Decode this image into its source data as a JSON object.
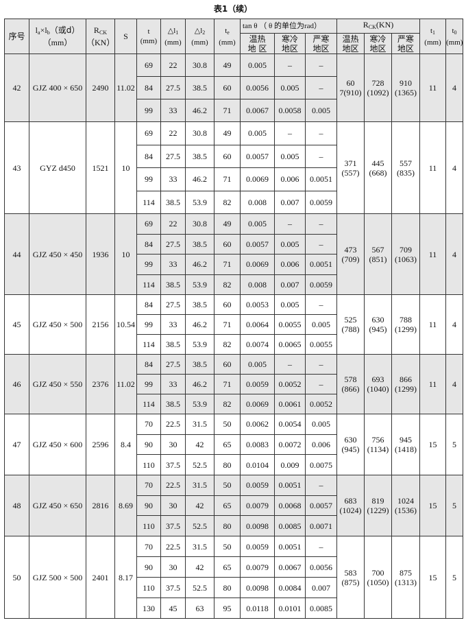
{
  "caption": "表1（续）",
  "header": {
    "no": "序号",
    "size": {
      "l": "l",
      "a": "a",
      "times": "×",
      "l2": "l",
      "b": "b",
      "or": "（或d）",
      "unit": "（mm）"
    },
    "rck": {
      "base": "R",
      "sub": "CK",
      "unit": "（KN）"
    },
    "s": "S",
    "t": {
      "label": "t",
      "unit": "(mm)"
    },
    "dl1": {
      "base": "△l",
      "sub": "1",
      "unit": "(mm)"
    },
    "dl2": {
      "base": "△l",
      "sub": "2",
      "unit": "(mm)"
    },
    "te": {
      "base": "t",
      "sub": "e",
      "unit": "(mm)"
    },
    "tan": "tan θ （ θ 的单位为rad）",
    "tan_sub": [
      "温热\n地 区",
      "寒冷\n地区",
      "严寒\n地区"
    ],
    "rck2": {
      "base": "R",
      "sub": "CK",
      "rest": "(KN)"
    },
    "rck2_sub": [
      "温热\n地区",
      "寒冷\n地区",
      "严寒\n地区"
    ],
    "t1": {
      "base": "t",
      "sub": "1",
      "unit": "(mm)"
    },
    "t0": {
      "base": "t",
      "sub": "0",
      "unit": "(mm)"
    }
  },
  "groups": [
    {
      "no": "42",
      "size": "GJZ 400 × 650",
      "rck": "2490",
      "s": "11.02",
      "rows": [
        [
          "69",
          "22",
          "30.8",
          "49",
          "0.005",
          "–",
          "–"
        ],
        [
          "84",
          "27.5",
          "38.5",
          "60",
          "0.0056",
          "0.005",
          "–"
        ],
        [
          "99",
          "33",
          "46.2",
          "71",
          "0.0067",
          "0.0058",
          "0.005"
        ]
      ],
      "rck_regions": [
        "60\n7(910)",
        "728\n(1092)",
        "910\n(1365)"
      ],
      "t1": "11",
      "t0": "4"
    },
    {
      "no": "43",
      "size": "GYZ  d450",
      "rck": "1521",
      "s": "10",
      "rows": [
        [
          "69",
          "22",
          "30.8",
          "49",
          "0.005",
          "–",
          "–"
        ],
        [
          "84",
          "27.5",
          "38.5",
          "60",
          "0.0057",
          "0.005",
          "–"
        ],
        [
          "99",
          "33",
          "46.2",
          "71",
          "0.0069",
          "0.006",
          "0.0051"
        ],
        [
          "114",
          "38.5",
          "53.9",
          "82",
          "0.008",
          "0.007",
          "0.0059"
        ]
      ],
      "rck_regions": [
        "371\n(557)",
        "445\n(668)",
        "557\n(835)"
      ],
      "t1": "11",
      "t0": "4"
    },
    {
      "no": "44",
      "size": "GJZ 450 × 450",
      "rck": "1936",
      "s": "10",
      "rows": [
        [
          "69",
          "22",
          "30.8",
          "49",
          "0.005",
          "–",
          "–"
        ],
        [
          "84",
          "27.5",
          "38.5",
          "60",
          "0.0057",
          "0.005",
          "–"
        ],
        [
          "99",
          "33",
          "46.2",
          "71",
          "0.0069",
          "0.006",
          "0.0051"
        ],
        [
          "114",
          "38.5",
          "53.9",
          "82",
          "0.008",
          "0.007",
          "0.0059"
        ]
      ],
      "rck_regions": [
        "473\n(709)",
        "567\n(851)",
        "709\n(1063)"
      ],
      "t1": "11",
      "t0": "4"
    },
    {
      "no": "45",
      "size": "GJZ 450 × 500",
      "rck": "2156",
      "s": "10.54",
      "rows": [
        [
          "84",
          "27.5",
          "38.5",
          "60",
          "0.0053",
          "0.005",
          "–"
        ],
        [
          "99",
          "33",
          "46.2",
          "71",
          "0.0064",
          "0.0055",
          "0.005"
        ],
        [
          "114",
          "38.5",
          "53.9",
          "82",
          "0.0074",
          "0.0065",
          "0.0055"
        ]
      ],
      "rck_regions": [
        "525\n(788)",
        "630\n(945)",
        "788\n(1299)"
      ],
      "t1": "11",
      "t0": "4"
    },
    {
      "no": "46",
      "size": "GJZ 450 × 550",
      "rck": "2376",
      "s": "11.02",
      "rows": [
        [
          "84",
          "27.5",
          "38.5",
          "60",
          "0.005",
          "–",
          "–"
        ],
        [
          "99",
          "33",
          "46.2",
          "71",
          "0.0059",
          "0.0052",
          "–"
        ],
        [
          "114",
          "38.5",
          "53.9",
          "82",
          "0.0069",
          "0.0061",
          "0.0052"
        ]
      ],
      "rck_regions": [
        "578\n(866)",
        "693\n(1040)",
        "866\n(1299)"
      ],
      "t1": "11",
      "t0": "4"
    },
    {
      "no": "47",
      "size": "GJZ 450 × 600",
      "rck": "2596",
      "s": "8.4",
      "rows": [
        [
          "70",
          "22.5",
          "31.5",
          "50",
          "0.0062",
          "0.0054",
          "0.005"
        ],
        [
          "90",
          "30",
          "42",
          "65",
          "0.0083",
          "0.0072",
          "0.006"
        ],
        [
          "110",
          "37.5",
          "52.5",
          "80",
          "0.0104",
          "0.009",
          "0.0075"
        ]
      ],
      "rck_regions": [
        "630\n(945)",
        "756\n(1134)",
        "945\n(1418)"
      ],
      "t1": "15",
      "t0": "5"
    },
    {
      "no": "48",
      "size": "GJZ 450 × 650",
      "rck": "2816",
      "s": "8.69",
      "rows": [
        [
          "70",
          "22.5",
          "31.5",
          "50",
          "0.0059",
          "0.0051",
          "–"
        ],
        [
          "90",
          "30",
          "42",
          "65",
          "0.0079",
          "0.0068",
          "0.0057"
        ],
        [
          "110",
          "37.5",
          "52.5",
          "80",
          "0.0098",
          "0.0085",
          "0.0071"
        ]
      ],
      "rck_regions": [
        "683\n(1024)",
        "819\n(1229)",
        "1024\n(1536)"
      ],
      "t1": "15",
      "t0": "5"
    },
    {
      "no": "50",
      "size": "GJZ 500 × 500",
      "rck": "2401",
      "s": "8.17",
      "rows": [
        [
          "70",
          "22.5",
          "31.5",
          "50",
          "0.0059",
          "0.0051",
          "–"
        ],
        [
          "90",
          "30",
          "42",
          "65",
          "0.0079",
          "0.0067",
          "0.0056"
        ],
        [
          "110",
          "37.5",
          "52.5",
          "80",
          "0.0098",
          "0.0084",
          "0.007"
        ],
        [
          "130",
          "45",
          "63",
          "95",
          "0.0118",
          "0.0101",
          "0.0085"
        ]
      ],
      "rck_regions": [
        "583\n(875)",
        "700\n(1050)",
        "875\n(1313)"
      ],
      "t1": "15",
      "t0": "5"
    }
  ]
}
